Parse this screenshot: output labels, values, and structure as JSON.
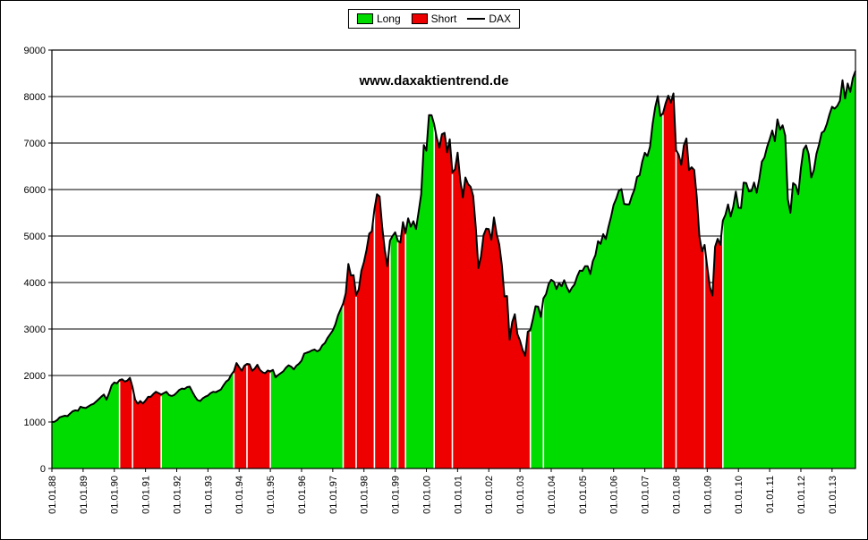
{
  "legend": {
    "items": [
      {
        "label": "Long",
        "color": "#00dc00",
        "swatch": "box"
      },
      {
        "label": "Short",
        "color": "#ee0000",
        "swatch": "box"
      },
      {
        "label": "DAX",
        "color": "#000000",
        "swatch": "line"
      }
    ]
  },
  "chart_data": {
    "type": "area",
    "title": "www.daxaktientrend.de",
    "series_name": "DAX",
    "frequency": "monthly",
    "start": "1988-01",
    "end": "2013-10",
    "ylim": [
      0,
      9000
    ],
    "ytick_step": 1000,
    "grid": true,
    "legend_position": "top-center",
    "y_tick_labels": [
      "0",
      "1000",
      "2000",
      "3000",
      "4000",
      "5000",
      "6000",
      "7000",
      "8000",
      "9000"
    ],
    "x_labels": [
      "01.01.88",
      "01.01.89",
      "01.01.90",
      "01.01.91",
      "01.01.92",
      "01.01.93",
      "01.01.94",
      "01.01.95",
      "01.01.96",
      "01.01.97",
      "01.01.98",
      "01.01.99",
      "01.01.00",
      "01.01.01",
      "01.01.02",
      "01.01.03",
      "01.01.04",
      "01.01.05",
      "01.01.06",
      "01.01.07",
      "01.01.08",
      "01.01.09",
      "01.01.10",
      "01.01.11",
      "01.01.12",
      "01.01.13"
    ],
    "colors": {
      "long": "#00dc00",
      "short": "#ee0000",
      "line": "#000000"
    },
    "values": [
      1000,
      1005,
      1040,
      1100,
      1120,
      1135,
      1125,
      1180,
      1230,
      1250,
      1240,
      1328,
      1310,
      1300,
      1335,
      1370,
      1390,
      1440,
      1490,
      1545,
      1590,
      1480,
      1620,
      1790,
      1850,
      1830,
      1900,
      1920,
      1870,
      1890,
      1950,
      1750,
      1480,
      1390,
      1450,
      1398,
      1460,
      1540,
      1540,
      1600,
      1650,
      1620,
      1590,
      1620,
      1650,
      1580,
      1560,
      1578,
      1630,
      1690,
      1720,
      1710,
      1750,
      1760,
      1650,
      1550,
      1470,
      1450,
      1510,
      1545,
      1570,
      1620,
      1650,
      1640,
      1670,
      1700,
      1790,
      1870,
      1910,
      2020,
      2090,
      2267,
      2180,
      2100,
      2210,
      2250,
      2240,
      2100,
      2150,
      2230,
      2120,
      2070,
      2050,
      2107,
      2090,
      2120,
      1960,
      2010,
      2050,
      2090,
      2170,
      2220,
      2190,
      2130,
      2210,
      2254,
      2320,
      2470,
      2490,
      2510,
      2540,
      2560,
      2520,
      2550,
      2650,
      2700,
      2810,
      2889,
      2970,
      3100,
      3290,
      3420,
      3550,
      3770,
      4400,
      4150,
      4160,
      3730,
      3850,
      4250,
      4440,
      4700,
      5050,
      5100,
      5570,
      5900,
      5850,
      5200,
      4700,
      4350,
      4900,
      5002,
      5080,
      4900,
      4860,
      5300,
      5070,
      5380,
      5200,
      5320,
      5150,
      5520,
      5900,
      6958,
      6835,
      7600,
      7599,
      7400,
      7110,
      6900,
      7190,
      7220,
      6800,
      7080,
      6370,
      6434,
      6795,
      6210,
      5830,
      6260,
      6120,
      6060,
      5860,
      5190,
      4310,
      4560,
      5020,
      5160,
      5150,
      4920,
      5400,
      5040,
      4820,
      4380,
      3700,
      3710,
      2770,
      3150,
      3320,
      2893,
      2750,
      2550,
      2423,
      2940,
      2980,
      3220,
      3490,
      3480,
      3260,
      3660,
      3750,
      3965,
      4060,
      4020,
      3860,
      3990,
      3920,
      4050,
      3900,
      3790,
      3890,
      3960,
      4130,
      4256,
      4250,
      4350,
      4350,
      4180,
      4460,
      4590,
      4890,
      4830,
      5040,
      4930,
      5190,
      5408,
      5670,
      5800,
      5970,
      6010,
      5690,
      5680,
      5680,
      5860,
      6000,
      6270,
      6310,
      6597,
      6790,
      6720,
      6920,
      7410,
      7770,
      8010,
      7580,
      7640,
      7860,
      8020,
      7870,
      8067,
      6850,
      6750,
      6530,
      6950,
      7100,
      6420,
      6480,
      6420,
      5830,
      4990,
      4670,
      4810,
      4340,
      3900,
      3720,
      4770,
      4940,
      4810,
      5330,
      5460,
      5680,
      5420,
      5630,
      5957,
      5610,
      5600,
      6150,
      6140,
      5960,
      5970,
      6150,
      5930,
      6230,
      6600,
      6690,
      6914,
      7080,
      7270,
      7040,
      7510,
      7290,
      7380,
      7160,
      5790,
      5500,
      6140,
      6090,
      5898,
      6460,
      6860,
      6950,
      6760,
      6260,
      6420,
      6770,
      6970,
      7220,
      7260,
      7410,
      7612,
      7780,
      7740,
      7800,
      7910,
      8350,
      7960,
      8280,
      8100,
      8400,
      8550
    ],
    "signal_segments": [
      {
        "signal": "long",
        "from": 0,
        "to": 25
      },
      {
        "signal": "short",
        "from": 26,
        "to": 41
      },
      {
        "signal": "long",
        "from": 42,
        "to": 69
      },
      {
        "signal": "short",
        "from": 70,
        "to": 83
      },
      {
        "signal": "long",
        "from": 84,
        "to": 111
      },
      {
        "signal": "short",
        "from": 112,
        "to": 129
      },
      {
        "signal": "long",
        "from": 130,
        "to": 132
      },
      {
        "signal": "short",
        "from": 133,
        "to": 135
      },
      {
        "signal": "long",
        "from": 136,
        "to": 146
      },
      {
        "signal": "short",
        "from": 147,
        "to": 183
      },
      {
        "signal": "long",
        "from": 184,
        "to": 234
      },
      {
        "signal": "short",
        "from": 235,
        "to": 257
      },
      {
        "signal": "long",
        "from": 258,
        "to": 309
      }
    ],
    "gap_indices": [
      31,
      75,
      117,
      124,
      154,
      189,
      240,
      251
    ]
  }
}
